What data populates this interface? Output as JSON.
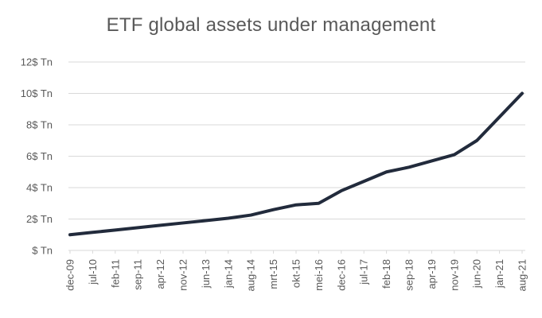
{
  "chart_data": {
    "type": "line",
    "title": "ETF global assets under management",
    "categories": [
      "dec-09",
      "jul-10",
      "feb-11",
      "sep-11",
      "apr-12",
      "nov-12",
      "jun-13",
      "jan-14",
      "aug-14",
      "mrt-15",
      "okt-15",
      "mei-16",
      "dec-16",
      "jul-17",
      "feb-18",
      "sep-18",
      "apr-19",
      "nov-19",
      "jun-20",
      "jan-21",
      "aug-21"
    ],
    "series": [
      {
        "name": "ETF global assets under management ($ Tn)",
        "values": [
          1.0,
          1.15,
          1.3,
          1.45,
          1.6,
          1.75,
          1.9,
          2.05,
          2.25,
          2.6,
          2.9,
          3.0,
          3.8,
          4.4,
          5.0,
          5.3,
          5.7,
          6.1,
          7.0,
          8.5,
          10.0
        ]
      }
    ],
    "xlabel": "",
    "ylabel": "",
    "ylim": [
      0,
      12
    ],
    "y_ticks": [
      {
        "value": 0,
        "label": "$ Tn"
      },
      {
        "value": 2,
        "label": "2$ Tn"
      },
      {
        "value": 4,
        "label": "4$ Tn"
      },
      {
        "value": 6,
        "label": "6$ Tn"
      },
      {
        "value": 8,
        "label": "8$ Tn"
      },
      {
        "value": 10,
        "label": "10$ Tn"
      },
      {
        "value": 12,
        "label": "12$ Tn"
      }
    ],
    "grid": "horizontal",
    "legend": "none",
    "colors": {
      "line": "#222b3c",
      "gridline": "#d9d9d9",
      "text": "#595959",
      "background": "#ffffff"
    }
  }
}
